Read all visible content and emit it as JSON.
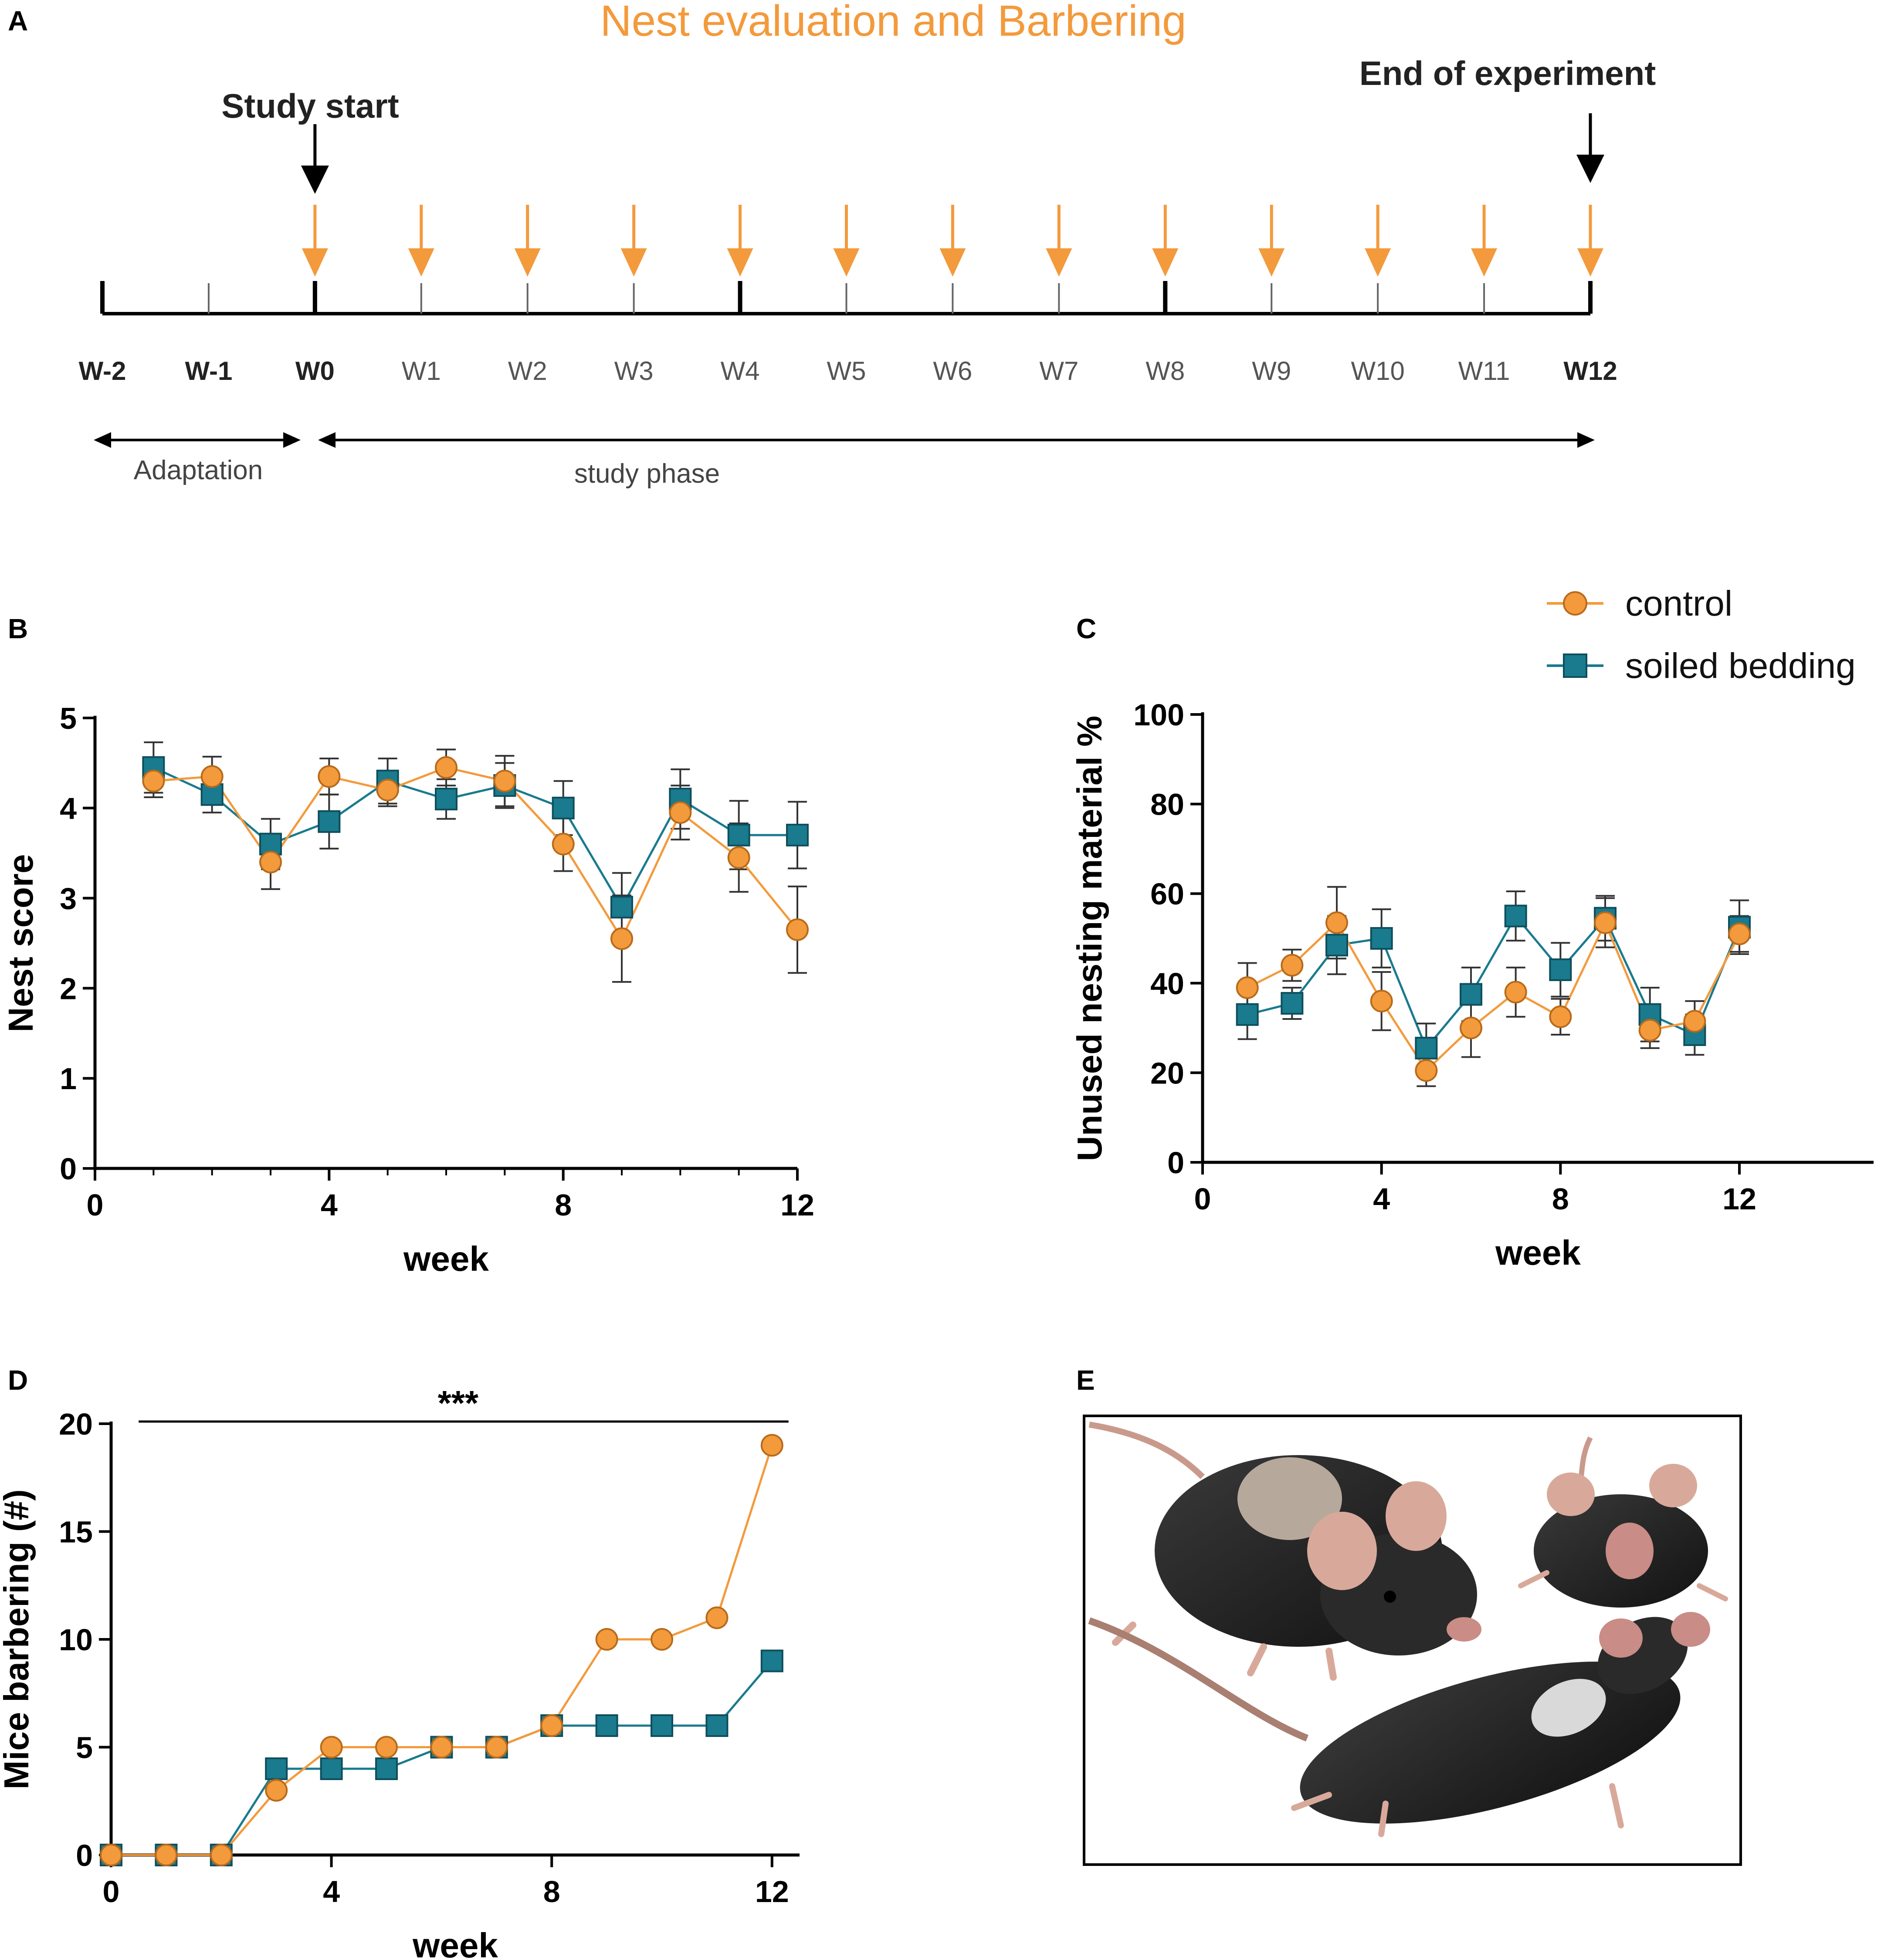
{
  "colors": {
    "control": "#F39A3C",
    "soiled": "#1A7A8E",
    "arrow_orange": "#F39A3C",
    "black": "#000000"
  },
  "panel_labels": [
    "A",
    "B",
    "C",
    "D",
    "E"
  ],
  "timeline": {
    "title": "Nest evaluation and Barbering",
    "study_start": "Study start",
    "end_of_experiment": "End of experiment",
    "weeks": [
      "W-2",
      "W-1",
      "W0",
      "W1",
      "W2",
      "W3",
      "W4",
      "W5",
      "W6",
      "W7",
      "W8",
      "W9",
      "W10",
      "W11",
      "W12"
    ],
    "adaptation": "Adaptation",
    "study_phase": "study phase"
  },
  "legend": {
    "control": "control",
    "soiled": "soiled bedding"
  },
  "chart_data": [
    {
      "id": "B",
      "type": "line",
      "xlabel": "week",
      "ylabel": "Nest score",
      "xlim": [
        0,
        12
      ],
      "ylim": [
        0,
        5
      ],
      "xticks": [
        0,
        4,
        8,
        12
      ],
      "yticks": [
        0,
        1,
        2,
        3,
        4,
        5
      ],
      "x": [
        1,
        2,
        3,
        4,
        5,
        6,
        7,
        8,
        9,
        10,
        11,
        12
      ],
      "series": [
        {
          "name": "control",
          "marker": "circle",
          "values": [
            4.3,
            4.35,
            3.4,
            4.35,
            4.2,
            4.45,
            4.3,
            3.6,
            2.55,
            3.95,
            3.45,
            2.65
          ],
          "errors": [
            0.18,
            0.22,
            0.3,
            0.2,
            0.18,
            0.2,
            0.28,
            0.3,
            0.48,
            0.3,
            0.38,
            0.48
          ]
        },
        {
          "name": "soiled bedding",
          "marker": "square",
          "values": [
            4.45,
            4.15,
            3.6,
            3.85,
            4.3,
            4.1,
            4.25,
            4.0,
            2.9,
            4.1,
            3.7,
            3.7
          ],
          "errors": [
            0.28,
            0.2,
            0.28,
            0.3,
            0.25,
            0.22,
            0.25,
            0.3,
            0.38,
            0.33,
            0.38,
            0.37
          ]
        }
      ]
    },
    {
      "id": "C",
      "type": "line",
      "xlabel": "week",
      "ylabel": "Unused nesting material %",
      "xlim": [
        0,
        15
      ],
      "ylim": [
        0,
        100
      ],
      "xticks": [
        0,
        4,
        8,
        12
      ],
      "yticks": [
        0,
        20,
        40,
        60,
        80,
        100
      ],
      "x": [
        1,
        2,
        3,
        4,
        5,
        6,
        7,
        8,
        9,
        10,
        11,
        12
      ],
      "series": [
        {
          "name": "control",
          "marker": "circle",
          "values": [
            39,
            44,
            53.5,
            36,
            20.5,
            30,
            38,
            32.5,
            53.5,
            29.5,
            31.5,
            51
          ],
          "errors": [
            5.5,
            3.5,
            8,
            6.5,
            3.5,
            6.5,
            5.5,
            4,
            5.5,
            4,
            4.5,
            4
          ]
        },
        {
          "name": "soiled bedding",
          "marker": "square",
          "values": [
            33,
            35.5,
            48.5,
            50,
            25.5,
            37.5,
            55,
            43,
            54.5,
            33,
            28.5,
            52.5
          ],
          "errors": [
            5.5,
            3.5,
            6.5,
            6.5,
            5.5,
            6,
            5.5,
            6,
            5,
            6,
            4.5,
            6
          ]
        }
      ]
    },
    {
      "id": "D",
      "type": "line",
      "xlabel": "week",
      "ylabel": "Mice barbering (#)",
      "xlim": [
        0,
        12.5
      ],
      "ylim": [
        0,
        20
      ],
      "xticks": [
        0,
        4,
        8,
        12
      ],
      "yticks": [
        0,
        5,
        10,
        15,
        20
      ],
      "annotation": "***",
      "x": [
        0,
        1,
        2,
        3,
        4,
        5,
        6,
        7,
        8,
        9,
        10,
        11,
        12
      ],
      "series": [
        {
          "name": "control",
          "marker": "circle",
          "values": [
            0,
            0,
            0,
            3,
            5,
            5,
            5,
            5,
            6,
            10,
            10,
            11,
            19
          ]
        },
        {
          "name": "soiled bedding",
          "marker": "square",
          "values": [
            0,
            0,
            0,
            4,
            4,
            4,
            5,
            5,
            6,
            6,
            6,
            6,
            9
          ]
        }
      ]
    }
  ]
}
